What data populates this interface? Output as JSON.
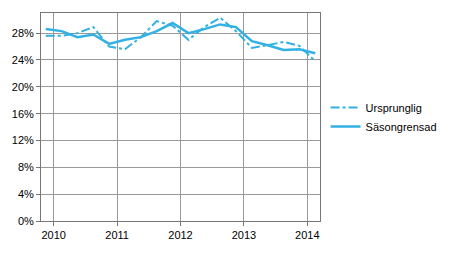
{
  "chart_data": {
    "type": "line",
    "x": [
      2009.875,
      2010.125,
      2010.375,
      2010.625,
      2010.875,
      2011.125,
      2011.375,
      2011.625,
      2011.875,
      2012.125,
      2012.375,
      2012.625,
      2012.875,
      2013.125,
      2013.375,
      2013.625,
      2013.875,
      2014.125
    ],
    "series": [
      {
        "name": "Ursprunglig",
        "color": "#33b0e4",
        "line_style": "dashdot",
        "values": [
          27.6,
          27.6,
          28.0,
          28.9,
          26.0,
          25.6,
          27.4,
          29.8,
          29.1,
          27.0,
          28.9,
          30.3,
          28.3,
          25.8,
          26.2,
          26.7,
          26.1,
          23.8
        ]
      },
      {
        "name": "Säsongrensad",
        "color": "#33b0e4",
        "line_style": "solid",
        "values": [
          28.6,
          28.3,
          27.4,
          27.8,
          26.4,
          27.0,
          27.4,
          28.3,
          29.5,
          28.0,
          28.6,
          29.3,
          28.9,
          26.8,
          26.2,
          25.5,
          25.6,
          25.0
        ]
      }
    ],
    "xlim": [
      2009.8,
      2014.2
    ],
    "xticks": [
      2010,
      2011,
      2012,
      2013,
      2014
    ],
    "ylim": [
      0,
      31
    ],
    "yticks": [
      {
        "value": 0,
        "label": "0%"
      },
      {
        "value": 4,
        "label": "4%"
      },
      {
        "value": 8,
        "label": "8%"
      },
      {
        "value": 12,
        "label": "12%"
      },
      {
        "value": 16,
        "label": "16%"
      },
      {
        "value": 20,
        "label": "20%"
      },
      {
        "value": 24,
        "label": "24%"
      },
      {
        "value": 28,
        "label": "28%"
      }
    ],
    "grid": true,
    "legend": "right"
  }
}
